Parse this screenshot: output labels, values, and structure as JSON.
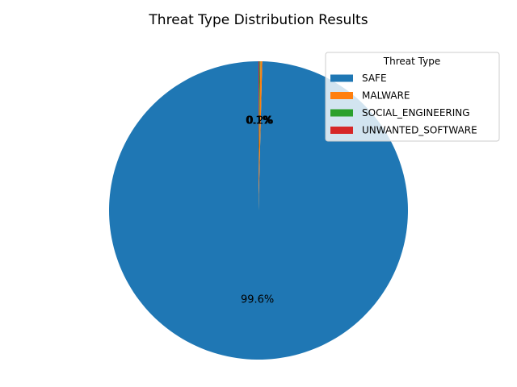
{
  "chart_data": {
    "type": "pie",
    "title": "Threat Type Distribution Results",
    "legend_title": "Threat Type",
    "legend_position": "top-right",
    "start_angle": 90,
    "direction": "counterclockwise",
    "slices": [
      {
        "label": "SAFE",
        "value": 99.6,
        "pct_label": "99.6%",
        "color": "#1f77b4"
      },
      {
        "label": "MALWARE",
        "value": 0.2,
        "pct_label": "0.2%",
        "color": "#ff7f0e"
      },
      {
        "label": "SOCIAL_ENGINEERING",
        "value": 0.1,
        "pct_label": "0.1%",
        "color": "#2ca02c"
      },
      {
        "label": "UNWANTED_SOFTWARE",
        "value": 0.1,
        "pct_label": "0.1%",
        "color": "#d62728"
      }
    ]
  }
}
